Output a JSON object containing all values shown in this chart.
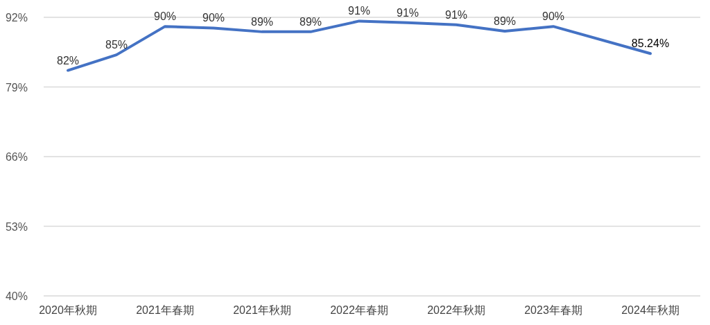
{
  "chart_data": {
    "type": "line",
    "categories": [
      "2020年秋期",
      null,
      "2021年春期",
      null,
      "2021年秋期",
      null,
      "2022年春期",
      null,
      "2022年秋期",
      null,
      "2023年春期",
      null,
      "2024年秋期"
    ],
    "series": [
      {
        "color": "#4472c4",
        "values": [
          82.1,
          85.0,
          90.3,
          90.0,
          89.3,
          89.3,
          91.3,
          91.0,
          90.6,
          89.4,
          90.3,
          null,
          85.24
        ],
        "value_labels": [
          "82%",
          "85%",
          "90%",
          "90%",
          "89%",
          "89%",
          "91%",
          "91%",
          "91%",
          "89%",
          "90%",
          null,
          "85.24%"
        ]
      }
    ],
    "ylim": [
      40,
      92
    ],
    "yticks": [
      {
        "value": 40,
        "label": "40%"
      },
      {
        "value": 53,
        "label": "53%"
      },
      {
        "value": 66,
        "label": "66%"
      },
      {
        "value": 79,
        "label": "79%"
      },
      {
        "value": 92,
        "label": "92%"
      }
    ],
    "grid": "y",
    "marker": "none",
    "line_style": "solid"
  }
}
